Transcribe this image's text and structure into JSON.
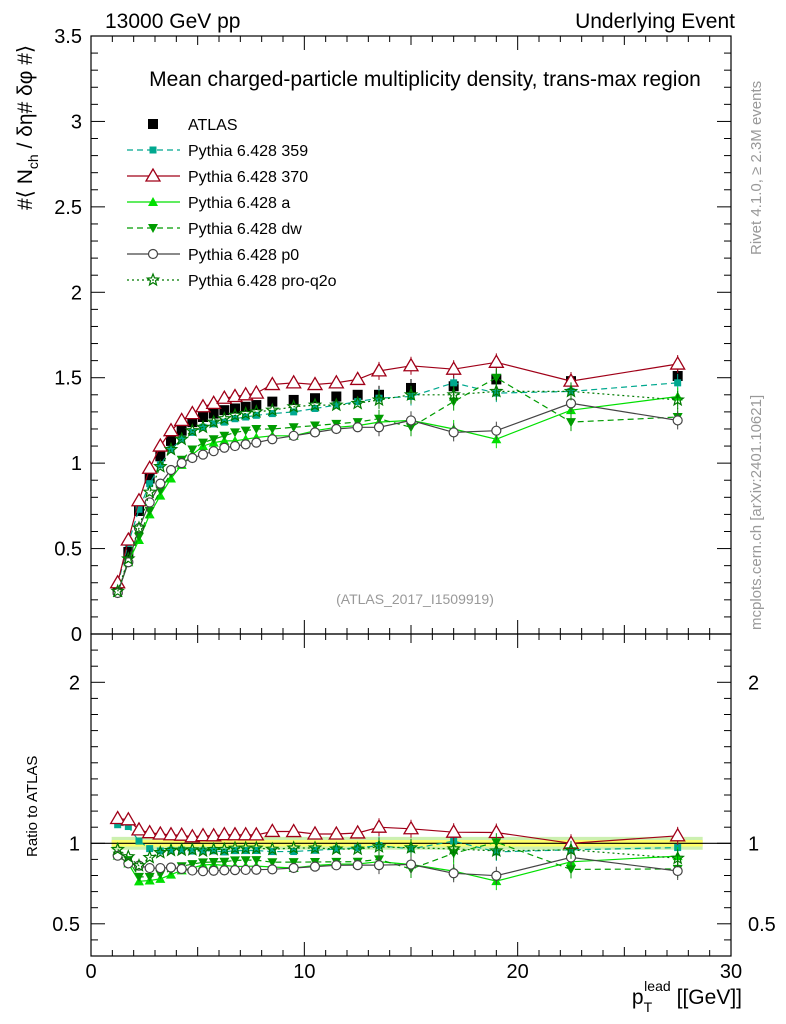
{
  "header": {
    "left": "13000 GeV pp",
    "right": "Underlying Event"
  },
  "side_labels": {
    "rivet": "Rivet 4.1.0, ≥ 2.3M events",
    "mcplots": "mcplots.cern.ch [arXiv:2401.10621]"
  },
  "colors": {
    "atlas": "#000000",
    "p359": "#00a88f",
    "p370": "#a00018",
    "pa": "#00e000",
    "pdw": "#009c00",
    "pp0": "#444444",
    "pq2o": "#007a00",
    "band_inner": "#ffff66",
    "band_outer": "#ccf0b0"
  },
  "chart_data": {
    "type": "line",
    "title": "Mean charged-particle multiplicity density, trans-max region",
    "watermark": "(ATLAS_2017_I1509919)",
    "xlabel": {
      "main": "p",
      "sub": "T",
      "sup": "lead",
      "unit": "[[GeV]]"
    },
    "ylabel_main": {
      "pre": "#⟨ N",
      "sub": "ch",
      "post": " / δη# δφ #⟩"
    },
    "ylabel_ratio": "Ratio to ATLAS",
    "xlim": [
      0,
      30
    ],
    "ylim": [
      0,
      3.5
    ],
    "ratio_ylim": [
      0.3,
      2.3
    ],
    "x_ticks": [
      "0",
      "10",
      "20",
      "30"
    ],
    "y_ticks": [
      "0",
      "0.5",
      "1",
      "1.5",
      "2",
      "2.5",
      "3",
      "3.5"
    ],
    "ratio_ticks": [
      "0.5",
      "1",
      "2"
    ],
    "x": [
      1.25,
      1.75,
      2.25,
      2.75,
      3.25,
      3.75,
      4.25,
      4.75,
      5.25,
      5.75,
      6.25,
      6.75,
      7.25,
      7.75,
      8.5,
      9.5,
      10.5,
      11.5,
      12.5,
      13.5,
      15.0,
      17.0,
      19.0,
      22.5,
      27.5
    ],
    "series": [
      {
        "key": "atlas",
        "name": "ATLAS",
        "marker": "square",
        "line": "none",
        "values": [
          0.26,
          0.48,
          0.72,
          0.91,
          1.04,
          1.13,
          1.19,
          1.24,
          1.27,
          1.29,
          1.31,
          1.32,
          1.33,
          1.34,
          1.36,
          1.37,
          1.38,
          1.39,
          1.4,
          1.4,
          1.44,
          1.45,
          1.49,
          1.48,
          1.51
        ]
      },
      {
        "key": "p359",
        "name": "Pythia 6.428 359",
        "marker": "small-square",
        "line": "dashed",
        "values": [
          0.29,
          0.53,
          0.73,
          0.88,
          0.99,
          1.08,
          1.14,
          1.18,
          1.21,
          1.23,
          1.24,
          1.26,
          1.27,
          1.28,
          1.29,
          1.3,
          1.32,
          1.34,
          1.36,
          1.38,
          1.39,
          1.47,
          1.41,
          1.42,
          1.47
        ]
      },
      {
        "key": "p370",
        "name": "Pythia 6.428 370",
        "marker": "open-triangle",
        "line": "solid",
        "values": [
          0.3,
          0.55,
          0.78,
          0.97,
          1.1,
          1.19,
          1.25,
          1.29,
          1.33,
          1.35,
          1.38,
          1.39,
          1.4,
          1.41,
          1.46,
          1.47,
          1.46,
          1.47,
          1.49,
          1.54,
          1.57,
          1.55,
          1.59,
          1.48,
          1.58
        ]
      },
      {
        "key": "pa",
        "name": "Pythia 6.428 a",
        "marker": "filled-triangle",
        "line": "solid",
        "values": [
          0.24,
          0.42,
          0.55,
          0.7,
          0.81,
          0.91,
          0.99,
          1.05,
          1.1,
          1.12,
          1.13,
          1.13,
          1.14,
          1.15,
          1.16,
          1.16,
          1.19,
          1.21,
          1.22,
          1.24,
          1.25,
          1.2,
          1.14,
          1.31,
          1.39
        ]
      },
      {
        "key": "pdw",
        "name": "Pythia 6.428 dw",
        "marker": "filled-triangle-down",
        "line": "dashed",
        "values": [
          0.24,
          0.43,
          0.57,
          0.72,
          0.84,
          0.94,
          1.02,
          1.08,
          1.12,
          1.14,
          1.16,
          1.18,
          1.19,
          1.2,
          1.2,
          1.21,
          1.22,
          1.23,
          1.24,
          1.26,
          1.21,
          1.36,
          1.5,
          1.24,
          1.27
        ]
      },
      {
        "key": "pp0",
        "name": "Pythia 6.428 p0",
        "marker": "open-circle",
        "line": "solid",
        "values": [
          0.24,
          0.42,
          0.62,
          0.77,
          0.88,
          0.96,
          1.0,
          1.03,
          1.05,
          1.07,
          1.09,
          1.1,
          1.11,
          1.12,
          1.14,
          1.16,
          1.18,
          1.2,
          1.21,
          1.21,
          1.25,
          1.18,
          1.19,
          1.35,
          1.25
        ]
      },
      {
        "key": "pq2o",
        "name": "Pythia 6.428 pro-q2o",
        "marker": "open-star",
        "line": "dotted",
        "values": [
          0.25,
          0.44,
          0.62,
          0.83,
          0.98,
          1.08,
          1.14,
          1.19,
          1.21,
          1.24,
          1.26,
          1.28,
          1.29,
          1.3,
          1.31,
          1.33,
          1.34,
          1.34,
          1.35,
          1.37,
          1.4,
          1.4,
          1.42,
          1.42,
          1.37
        ]
      }
    ]
  }
}
